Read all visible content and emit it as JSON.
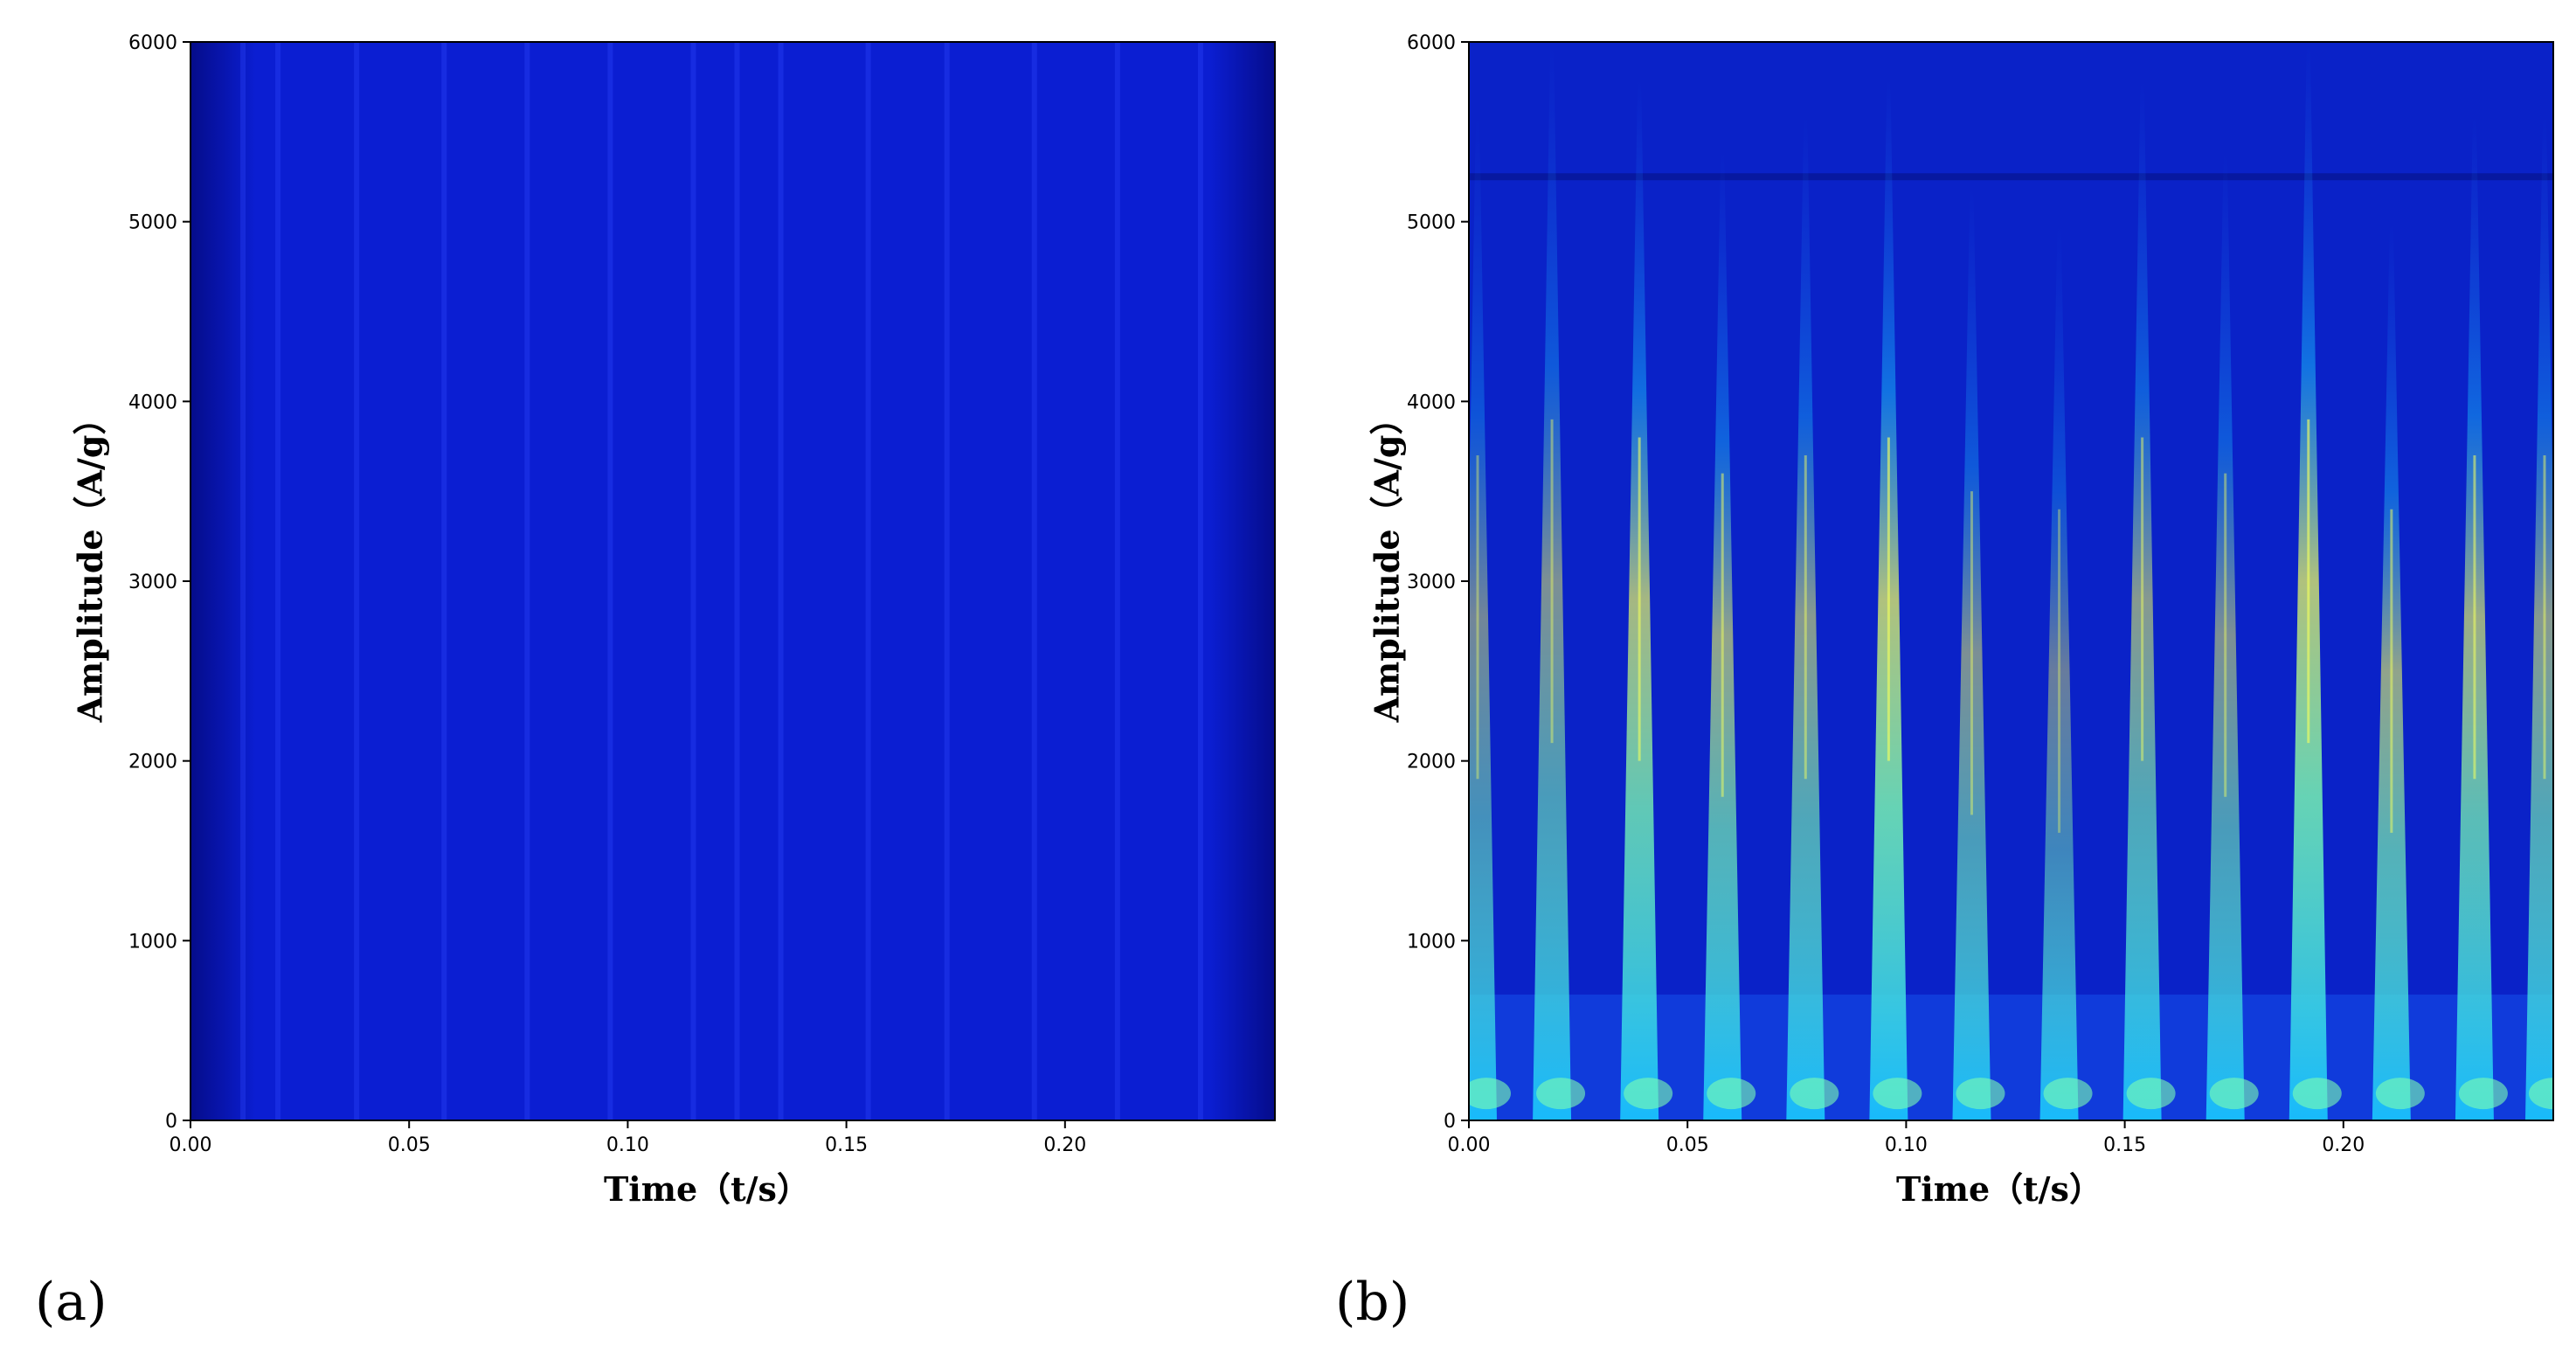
{
  "chart_data": [
    {
      "type": "heatmap",
      "panel_label": "(a)",
      "xlabel": "Time（t/s）",
      "ylabel": "Amplitude（A/g）",
      "xlim": [
        0.0,
        0.248
      ],
      "ylim": [
        0,
        6000
      ],
      "x_ticks": [
        0.0,
        0.05,
        0.1,
        0.15,
        0.2
      ],
      "x_tick_labels": [
        "0.00",
        "0.05",
        "0.10",
        "0.15",
        "0.20"
      ],
      "y_ticks": [
        0,
        1000,
        2000,
        3000,
        4000,
        5000,
        6000
      ],
      "y_tick_labels": [
        "0",
        "1000",
        "2000",
        "3000",
        "4000",
        "5000",
        "6000"
      ],
      "colormap": "jet",
      "grid": false,
      "background_color": "#0b1ed2",
      "edge_color": "#050c8a",
      "description_intensity": "uniformly low; faint vertical streaks",
      "streak_times": [
        0.012,
        0.02,
        0.038,
        0.058,
        0.077,
        0.096,
        0.115,
        0.125,
        0.135,
        0.155,
        0.173,
        0.193,
        0.212,
        0.231
      ]
    },
    {
      "type": "heatmap",
      "panel_label": "(b)",
      "xlabel": "Time（t/s）",
      "ylabel": "Amplitude（A/g）",
      "xlim": [
        0.0,
        0.248
      ],
      "ylim": [
        0,
        6000
      ],
      "x_ticks": [
        0.0,
        0.05,
        0.1,
        0.15,
        0.2
      ],
      "x_tick_labels": [
        "0.00",
        "0.05",
        "0.10",
        "0.15",
        "0.20"
      ],
      "y_ticks": [
        0,
        1000,
        2000,
        3000,
        4000,
        5000,
        6000
      ],
      "y_tick_labels": [
        "0",
        "1000",
        "2000",
        "3000",
        "4000",
        "5000",
        "6000"
      ],
      "colormap": "jet",
      "grid": false,
      "background_color": "#0a22c8",
      "band_colors": [
        "#1e6bff",
        "#19c8ff",
        "#7dffb0",
        "#f0ff60"
      ],
      "impulse_times": [
        0.002,
        0.019,
        0.039,
        0.058,
        0.077,
        0.096,
        0.115,
        0.135,
        0.154,
        0.173,
        0.192,
        0.211,
        0.23,
        0.246
      ],
      "impulse_peak_frequency": [
        2800,
        3000,
        2900,
        2700,
        2800,
        2900,
        2600,
        2500,
        2900,
        2700,
        3000,
        2500,
        2800,
        2800
      ],
      "impulse_strength": [
        0.5,
        0.55,
        0.75,
        0.65,
        0.6,
        0.8,
        0.55,
        0.45,
        0.6,
        0.55,
        0.8,
        0.65,
        0.7,
        0.6
      ],
      "horizontal_band_frequency": 5250
    }
  ]
}
